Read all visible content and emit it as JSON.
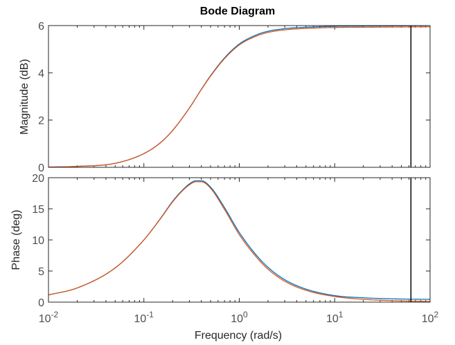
{
  "chart_data": {
    "type": "line",
    "title": "Bode Diagram",
    "xlabel": "Frequency  (rad/s)",
    "x_scale": "log",
    "xlim": [
      0.01,
      100
    ],
    "x_ticks": [
      {
        "value": 0.01,
        "base": "10",
        "exp": "-2"
      },
      {
        "value": 0.1,
        "base": "10",
        "exp": "-1"
      },
      {
        "value": 1,
        "base": "10",
        "exp": "0"
      },
      {
        "value": 10,
        "base": "10",
        "exp": "1"
      },
      {
        "value": 100,
        "base": "10",
        "exp": "2"
      }
    ],
    "grid": false,
    "vertical_marker": {
      "x": 63,
      "color": "#000000"
    },
    "series_colors": [
      "#0072BD",
      "#D95319"
    ],
    "panels": [
      {
        "name": "magnitude",
        "ylabel": "Magnitude (dB)",
        "ylim": [
          0,
          6
        ],
        "y_ticks": [
          "0",
          "2",
          "4",
          "6"
        ],
        "series": [
          {
            "x": [
              0.01,
              0.02,
              0.05,
              0.1,
              0.15,
              0.2,
              0.3,
              0.4,
              0.5,
              0.7,
              1,
              1.5,
              2,
              3,
              5,
              10,
              20,
              50,
              100
            ],
            "values": [
              0.01,
              0.04,
              0.17,
              0.58,
              1.05,
              1.56,
              2.51,
              3.3,
              3.88,
              4.63,
              5.22,
              5.6,
              5.76,
              5.87,
              5.93,
              5.97,
              5.98,
              5.99,
              6.0
            ]
          },
          {
            "x": [
              0.01,
              0.02,
              0.05,
              0.1,
              0.15,
              0.2,
              0.3,
              0.4,
              0.5,
              0.7,
              1,
              1.5,
              2,
              3,
              5,
              10,
              20,
              50,
              100
            ],
            "values": [
              0.01,
              0.04,
              0.17,
              0.58,
              1.05,
              1.56,
              2.51,
              3.29,
              3.86,
              4.6,
              5.18,
              5.55,
              5.71,
              5.82,
              5.88,
              5.92,
              5.93,
              5.94,
              5.95
            ]
          }
        ]
      },
      {
        "name": "phase",
        "ylabel": "Phase (deg)",
        "ylim": [
          0,
          20
        ],
        "y_ticks": [
          "0",
          "5",
          "10",
          "15",
          "20"
        ],
        "series": [
          {
            "x": [
              0.01,
              0.02,
              0.05,
              0.1,
              0.15,
              0.2,
              0.25,
              0.3,
              0.35,
              0.4,
              0.5,
              0.7,
              1,
              1.5,
              2,
              3,
              5,
              10,
              20,
              50,
              100
            ],
            "values": [
              1.15,
              2.28,
              5.5,
              10.0,
              13.5,
              16.2,
              17.9,
              19.0,
              19.5,
              19.5,
              18.5,
              15.2,
              11.2,
              7.6,
              5.6,
              3.6,
              2.1,
              1.05,
              0.7,
              0.5,
              0.45
            ]
          },
          {
            "x": [
              0.01,
              0.02,
              0.05,
              0.1,
              0.15,
              0.2,
              0.25,
              0.3,
              0.35,
              0.4,
              0.5,
              0.7,
              1,
              1.5,
              2,
              3,
              5,
              10,
              20,
              50,
              100
            ],
            "values": [
              1.15,
              2.28,
              5.5,
              10.0,
              13.45,
              16.1,
              17.8,
              18.85,
              19.35,
              19.35,
              18.3,
              14.9,
              10.85,
              7.3,
              5.3,
              3.35,
              1.9,
              0.9,
              0.45,
              0.2,
              0.1
            ]
          }
        ]
      }
    ]
  }
}
